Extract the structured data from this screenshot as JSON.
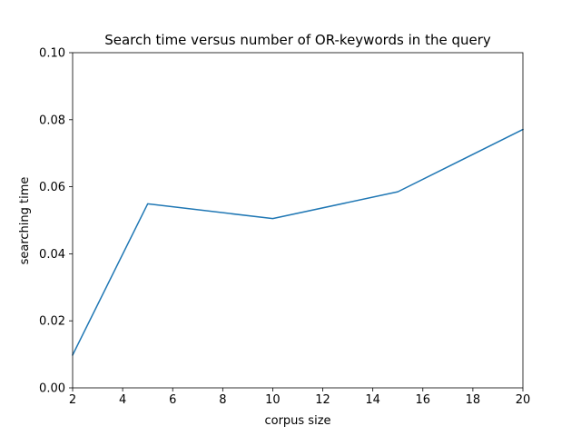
{
  "chart_data": {
    "type": "line",
    "title": "Search time versus number of OR-keywords in the query",
    "xlabel": "corpus size",
    "ylabel": "searching time",
    "xlim": [
      2,
      20
    ],
    "ylim": [
      0,
      0.1
    ],
    "xticks": [
      "2",
      "4",
      "6",
      "8",
      "10",
      "12",
      "14",
      "16",
      "18",
      "20"
    ],
    "yticks": [
      "0.00",
      "0.02",
      "0.04",
      "0.06",
      "0.08",
      "0.10"
    ],
    "grid": false,
    "series": [
      {
        "color": "#1f77b4",
        "x": [
          2,
          5,
          10,
          15,
          20
        ],
        "y": [
          0.0098,
          0.0549,
          0.0505,
          0.0585,
          0.0771
        ]
      }
    ]
  }
}
